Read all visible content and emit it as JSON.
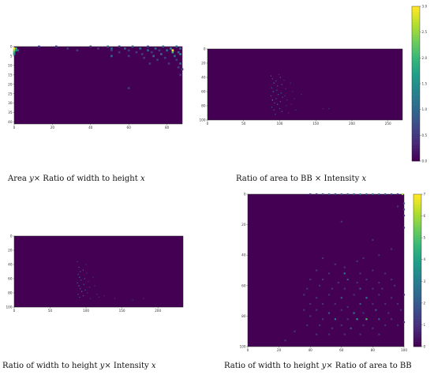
{
  "captions": {
    "c1": {
      "pre": "Area ",
      "y": "y",
      "mid": "× Ratio of width to height ",
      "x": "x"
    },
    "c2": {
      "pre": "Ratio of area to BB × Intensity ",
      "x": "x"
    },
    "c3": {
      "pre": "Ratio of width to height ",
      "y": "y",
      "mid": "× Intensity ",
      "x": "x"
    },
    "c4": {
      "pre": "Ratio of width to height ",
      "y": "y",
      "mid": "× Ratio of area to BB"
    }
  },
  "colors": {
    "background": "#440154",
    "colormap": "viridis"
  },
  "chart_data": [
    {
      "type": "heatmap",
      "title": "",
      "xlim": [
        0,
        88
      ],
      "ylim": [
        0,
        41
      ],
      "xticks": [
        "0",
        "20",
        "40",
        "60",
        "80"
      ],
      "yticks": [
        "0",
        "5",
        "10",
        "15",
        "20",
        "25",
        "30",
        "35",
        "40"
      ],
      "colorbar": {
        "min": 0,
        "max": 3.0,
        "ticks": [
          "0.0",
          "0.5",
          "1.0",
          "1.5",
          "2.0",
          "2.5",
          "3.0"
        ]
      },
      "points": [
        [
          0,
          1,
          3
        ],
        [
          0,
          2,
          2.5
        ],
        [
          0,
          3,
          2
        ],
        [
          0,
          4,
          1.5
        ],
        [
          1,
          1,
          2
        ],
        [
          1,
          2,
          1.5
        ],
        [
          2,
          2,
          1
        ],
        [
          13,
          0,
          0.5
        ],
        [
          22,
          0,
          0.5
        ],
        [
          28,
          1,
          0.5
        ],
        [
          33,
          2,
          0.5
        ],
        [
          40,
          0,
          0.5
        ],
        [
          44,
          1,
          0.5
        ],
        [
          49,
          0,
          1
        ],
        [
          51,
          1,
          1
        ],
        [
          51,
          2,
          0.5
        ],
        [
          51,
          5,
          1
        ],
        [
          55,
          0,
          0.5
        ],
        [
          55,
          3,
          0.5
        ],
        [
          58,
          1,
          1
        ],
        [
          60,
          2,
          0.5
        ],
        [
          60,
          5,
          0.5
        ],
        [
          62,
          0,
          1
        ],
        [
          64,
          3,
          0.5
        ],
        [
          66,
          1,
          1
        ],
        [
          67,
          4,
          0.5
        ],
        [
          68,
          6,
          0.5
        ],
        [
          70,
          0,
          0.5
        ],
        [
          70,
          2,
          1
        ],
        [
          71,
          9,
          0.5
        ],
        [
          72,
          3,
          0.5
        ],
        [
          73,
          5,
          1
        ],
        [
          74,
          1,
          1
        ],
        [
          75,
          7,
          0.5
        ],
        [
          76,
          2,
          0.5
        ],
        [
          77,
          4,
          1
        ],
        [
          78,
          0,
          1
        ],
        [
          79,
          6,
          0.5
        ],
        [
          80,
          2,
          1
        ],
        [
          81,
          9,
          0.5
        ],
        [
          82,
          1,
          1.5
        ],
        [
          83,
          2,
          3
        ],
        [
          83,
          3,
          2
        ],
        [
          84,
          5,
          1
        ],
        [
          85,
          0,
          1
        ],
        [
          85,
          7,
          0.5
        ],
        [
          86,
          3,
          1
        ],
        [
          86,
          11,
          0.5
        ],
        [
          87,
          1,
          1
        ],
        [
          87,
          4,
          1.5
        ],
        [
          87,
          9,
          1
        ],
        [
          87,
          15,
          0.5
        ],
        [
          60,
          22,
          0.5
        ],
        [
          88,
          12,
          0.5
        ]
      ]
    },
    {
      "type": "heatmap",
      "title": "",
      "xlim": [
        0,
        270
      ],
      "ylim": [
        0,
        100
      ],
      "xticks": [
        "0",
        "50",
        "100",
        "150",
        "200",
        "250"
      ],
      "yticks": [
        "0",
        "20",
        "40",
        "60",
        "80",
        "100"
      ],
      "points": [
        [
          88,
          38,
          1
        ],
        [
          90,
          42,
          1
        ],
        [
          92,
          48,
          1.5
        ],
        [
          89,
          55,
          1
        ],
        [
          91,
          60,
          1.5
        ],
        [
          88,
          66,
          1
        ],
        [
          90,
          72,
          2
        ],
        [
          93,
          76,
          1
        ],
        [
          89,
          82,
          1
        ],
        [
          92,
          86,
          1
        ],
        [
          95,
          45,
          1
        ],
        [
          97,
          52,
          1
        ],
        [
          96,
          58,
          1
        ],
        [
          98,
          64,
          1
        ],
        [
          95,
          70,
          1
        ],
        [
          97,
          78,
          1.5
        ],
        [
          100,
          84,
          1
        ],
        [
          101,
          40,
          1
        ],
        [
          103,
          50,
          1
        ],
        [
          102,
          62,
          1
        ],
        [
          104,
          68,
          1
        ],
        [
          101,
          74,
          1
        ],
        [
          103,
          88,
          1
        ],
        [
          106,
          44,
          0.5
        ],
        [
          108,
          56,
          0.5
        ],
        [
          107,
          66,
          0.5
        ],
        [
          110,
          72,
          0.5
        ],
        [
          109,
          80,
          0.5
        ],
        [
          112,
          90,
          0.5
        ],
        [
          115,
          48,
          0.5
        ],
        [
          118,
          60,
          0.5
        ],
        [
          120,
          70,
          0.5
        ],
        [
          116,
          78,
          0.5
        ],
        [
          122,
          86,
          0.5
        ],
        [
          130,
          64,
          0.5
        ],
        [
          160,
          84,
          0.5
        ],
        [
          168,
          84,
          0.5
        ],
        [
          94,
          92,
          1
        ],
        [
          99,
          36,
          0.5
        ]
      ]
    },
    {
      "type": "heatmap",
      "title": "",
      "xlim": [
        0,
        235
      ],
      "ylim": [
        0,
        100
      ],
      "xticks": [
        "0",
        "50",
        "100",
        "150",
        "200"
      ],
      "yticks": [
        "0",
        "20",
        "40",
        "60",
        "80",
        "100"
      ],
      "points": [
        [
          88,
          36,
          0.5
        ],
        [
          90,
          44,
          1
        ],
        [
          92,
          50,
          1
        ],
        [
          89,
          54,
          1
        ],
        [
          91,
          58,
          1.5
        ],
        [
          93,
          62,
          1
        ],
        [
          88,
          66,
          1
        ],
        [
          90,
          70,
          1.5
        ],
        [
          92,
          74,
          1
        ],
        [
          94,
          78,
          1.5
        ],
        [
          89,
          82,
          1
        ],
        [
          91,
          86,
          1
        ],
        [
          96,
          48,
          1
        ],
        [
          98,
          60,
          1
        ],
        [
          97,
          68,
          1
        ],
        [
          99,
          76,
          1
        ],
        [
          96,
          84,
          1
        ],
        [
          101,
          52,
          0.5
        ],
        [
          103,
          64,
          0.5
        ],
        [
          105,
          72,
          0.5
        ],
        [
          102,
          80,
          0.5
        ],
        [
          106,
          88,
          0.5
        ],
        [
          110,
          58,
          0.5
        ],
        [
          112,
          70,
          0.5
        ],
        [
          115,
          82,
          0.5
        ],
        [
          118,
          86,
          0.5
        ],
        [
          125,
          84,
          0.5
        ],
        [
          140,
          88,
          0.5
        ],
        [
          165,
          90,
          0.5
        ],
        [
          180,
          88,
          0.5
        ],
        [
          100,
          40,
          0.5
        ]
      ]
    },
    {
      "type": "heatmap",
      "title": "",
      "xlim": [
        0,
        100
      ],
      "ylim": [
        0,
        100
      ],
      "xticks": [
        "0",
        "20",
        "40",
        "60",
        "80",
        "100"
      ],
      "yticks": [
        "0",
        "20",
        "40",
        "60",
        "80",
        "100"
      ],
      "colorbar": {
        "min": 0,
        "max": 7,
        "ticks": [
          "0",
          "1",
          "2",
          "3",
          "4",
          "5",
          "6",
          "7"
        ]
      },
      "points": [
        [
          40,
          0,
          1
        ],
        [
          44,
          0,
          1
        ],
        [
          48,
          0,
          1.5
        ],
        [
          52,
          0,
          2
        ],
        [
          56,
          0,
          1.5
        ],
        [
          60,
          0,
          2
        ],
        [
          64,
          0,
          1.5
        ],
        [
          68,
          0,
          2
        ],
        [
          72,
          0,
          3
        ],
        [
          76,
          0,
          2
        ],
        [
          80,
          0,
          2.5
        ],
        [
          84,
          0,
          2
        ],
        [
          88,
          0,
          2
        ],
        [
          92,
          0,
          1.5
        ],
        [
          96,
          0,
          1
        ],
        [
          99,
          0,
          6
        ],
        [
          100,
          6,
          2
        ],
        [
          100,
          10,
          1.5
        ],
        [
          100,
          14,
          1
        ],
        [
          100,
          22,
          1
        ],
        [
          96,
          8,
          1
        ],
        [
          60,
          18,
          1
        ],
        [
          80,
          30,
          1
        ],
        [
          48,
          42,
          1
        ],
        [
          56,
          46,
          1
        ],
        [
          62,
          48,
          1
        ],
        [
          70,
          44,
          1
        ],
        [
          74,
          42,
          1
        ],
        [
          84,
          40,
          1
        ],
        [
          92,
          36,
          1
        ],
        [
          44,
          50,
          1
        ],
        [
          52,
          52,
          1
        ],
        [
          62,
          52,
          3
        ],
        [
          72,
          52,
          1
        ],
        [
          80,
          50,
          1
        ],
        [
          88,
          52,
          1
        ],
        [
          40,
          56,
          1
        ],
        [
          48,
          56,
          1
        ],
        [
          58,
          58,
          1
        ],
        [
          64,
          56,
          2
        ],
        [
          70,
          58,
          1
        ],
        [
          76,
          56,
          1
        ],
        [
          84,
          58,
          1
        ],
        [
          92,
          56,
          1
        ],
        [
          38,
          62,
          1
        ],
        [
          46,
          60,
          1
        ],
        [
          54,
          62,
          1
        ],
        [
          62,
          62,
          1
        ],
        [
          72,
          62,
          2
        ],
        [
          80,
          62,
          1
        ],
        [
          86,
          62,
          1
        ],
        [
          94,
          60,
          1
        ],
        [
          36,
          66,
          1
        ],
        [
          44,
          68,
          1
        ],
        [
          52,
          66,
          1
        ],
        [
          60,
          68,
          2
        ],
        [
          68,
          66,
          1
        ],
        [
          76,
          68,
          3
        ],
        [
          84,
          66,
          1
        ],
        [
          92,
          68,
          1
        ],
        [
          100,
          66,
          1
        ],
        [
          40,
          72,
          1
        ],
        [
          48,
          72,
          1
        ],
        [
          56,
          72,
          1
        ],
        [
          64,
          74,
          1
        ],
        [
          72,
          72,
          2
        ],
        [
          80,
          72,
          1
        ],
        [
          88,
          72,
          1
        ],
        [
          96,
          72,
          1
        ],
        [
          36,
          76,
          1
        ],
        [
          44,
          76,
          1
        ],
        [
          52,
          78,
          2
        ],
        [
          60,
          76,
          1
        ],
        [
          68,
          78,
          3
        ],
        [
          74,
          78,
          1
        ],
        [
          82,
          76,
          2
        ],
        [
          90,
          78,
          1
        ],
        [
          98,
          76,
          1
        ],
        [
          40,
          80,
          1
        ],
        [
          48,
          82,
          1
        ],
        [
          56,
          82,
          3
        ],
        [
          64,
          82,
          1
        ],
        [
          70,
          82,
          4
        ],
        [
          76,
          82,
          5
        ],
        [
          84,
          82,
          2
        ],
        [
          92,
          82,
          1
        ],
        [
          38,
          86,
          1
        ],
        [
          46,
          86,
          1
        ],
        [
          54,
          88,
          1
        ],
        [
          60,
          86,
          1
        ],
        [
          66,
          88,
          2
        ],
        [
          74,
          86,
          1
        ],
        [
          80,
          88,
          1
        ],
        [
          88,
          86,
          1
        ],
        [
          96,
          86,
          1
        ],
        [
          44,
          92,
          1
        ],
        [
          52,
          92,
          1
        ],
        [
          62,
          92,
          1
        ],
        [
          72,
          92,
          1
        ],
        [
          84,
          92,
          1
        ],
        [
          30,
          90,
          1
        ],
        [
          24,
          96,
          1
        ],
        [
          100,
          84,
          1
        ]
      ]
    }
  ]
}
